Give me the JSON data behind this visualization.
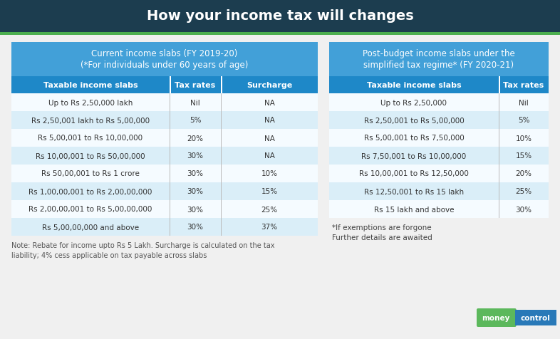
{
  "title": "How your income tax will changes",
  "title_bg": "#1c3d4f",
  "title_color": "#ffffff",
  "accent_line_color": "#4caf50",
  "body_bg": "#f0f0f0",
  "header_bg": "#42a0d8",
  "subheader_bg": "#1e88c8",
  "row_even_bg": "#daeef8",
  "row_odd_bg": "#f5fbff",
  "text_color": "#333333",
  "left_table_subheader": [
    "Current income slabs (FY 2019-20)",
    "(*For individuals under 60 years of age)"
  ],
  "right_table_subheader": [
    "Post-budget income slabs under the",
    "simplified tax regime* (FY 2020-21)"
  ],
  "left_col_headers": [
    "Taxable income slabs",
    "Tax rates",
    "Surcharge"
  ],
  "right_col_headers": [
    "Taxable income slabs",
    "Tax rates"
  ],
  "left_rows": [
    [
      "Up to Rs 2,50,000 lakh",
      "Nil",
      "NA"
    ],
    [
      "Rs 2,50,001 lakh to Rs 5,00,000",
      "5%",
      "NA"
    ],
    [
      "Rs 5,00,001 to Rs 10,00,000",
      "20%",
      "NA"
    ],
    [
      "Rs 10,00,001 to Rs 50,00,000",
      "30%",
      "NA"
    ],
    [
      "Rs 50,00,001 to Rs 1 crore",
      "30%",
      "10%"
    ],
    [
      "Rs 1,00,00,001 to Rs 2,00,00,000",
      "30%",
      "15%"
    ],
    [
      "Rs 2,00,00,001 to Rs 5,00,00,000",
      "30%",
      "25%"
    ],
    [
      "Rs 5,00,00,000 and above",
      "30%",
      "37%"
    ]
  ],
  "right_rows": [
    [
      "Up to Rs 2,50,000",
      "Nil"
    ],
    [
      "Rs 2,50,001 to Rs 5,00,000",
      "5%"
    ],
    [
      "Rs 5,00,001 to Rs 7,50,000",
      "10%"
    ],
    [
      "Rs 7,50,001 to Rs 10,00,000",
      "15%"
    ],
    [
      "Rs 10,00,001 to Rs 12,50,000",
      "20%"
    ],
    [
      "Rs 12,50,001 to Rs 15 lakh",
      "25%"
    ],
    [
      "Rs 15 lakh and above",
      "30%"
    ]
  ],
  "footnote_right": [
    "*If exemptions are forgone",
    "Further details are awaited"
  ],
  "footnote_left": "Note: Rebate for income upto Rs 5 Lakh. Surcharge is calculated on the tax\nliability; 4% cess applicable on tax payable across slabs",
  "logo_green": "#5cb85c",
  "logo_blue": "#2979b8",
  "logo_money": "money",
  "logo_control": "control"
}
